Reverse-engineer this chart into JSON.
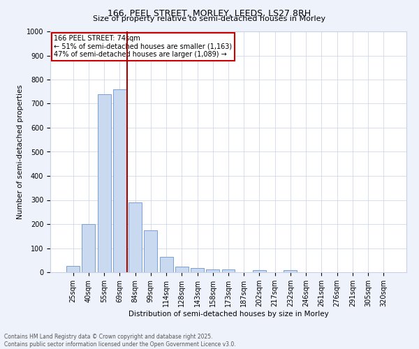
{
  "title": "166, PEEL STREET, MORLEY, LEEDS, LS27 8RH",
  "subtitle": "Size of property relative to semi-detached houses in Morley",
  "xlabel": "Distribution of semi-detached houses by size in Morley",
  "ylabel": "Number of semi-detached properties",
  "categories": [
    "25sqm",
    "40sqm",
    "55sqm",
    "69sqm",
    "84sqm",
    "99sqm",
    "114sqm",
    "128sqm",
    "143sqm",
    "158sqm",
    "173sqm",
    "187sqm",
    "202sqm",
    "217sqm",
    "232sqm",
    "246sqm",
    "261sqm",
    "276sqm",
    "291sqm",
    "305sqm",
    "320sqm"
  ],
  "values": [
    25,
    200,
    740,
    760,
    290,
    175,
    65,
    22,
    18,
    13,
    13,
    0,
    8,
    0,
    8,
    0,
    0,
    0,
    0,
    0,
    0
  ],
  "bar_color": "#c9d9f0",
  "bar_edge_color": "#7a9fd4",
  "vline_color": "#aa0000",
  "vline_x_index": 3.5,
  "annotation_title": "166 PEEL STREET: 74sqm",
  "annotation_line1": "← 51% of semi-detached houses are smaller (1,163)",
  "annotation_line2": "47% of semi-detached houses are larger (1,089) →",
  "annotation_box_color": "#cc0000",
  "ylim": [
    0,
    1000
  ],
  "yticks": [
    0,
    100,
    200,
    300,
    400,
    500,
    600,
    700,
    800,
    900,
    1000
  ],
  "footer_line1": "Contains HM Land Registry data © Crown copyright and database right 2025.",
  "footer_line2": "Contains public sector information licensed under the Open Government Licence v3.0.",
  "bg_color": "#eef2fa",
  "plot_bg_color": "#ffffff",
  "grid_color": "#c8d0e8",
  "title_fontsize": 9,
  "subtitle_fontsize": 8,
  "tick_fontsize": 7,
  "label_fontsize": 7.5,
  "footer_fontsize": 5.5,
  "annot_fontsize": 7
}
